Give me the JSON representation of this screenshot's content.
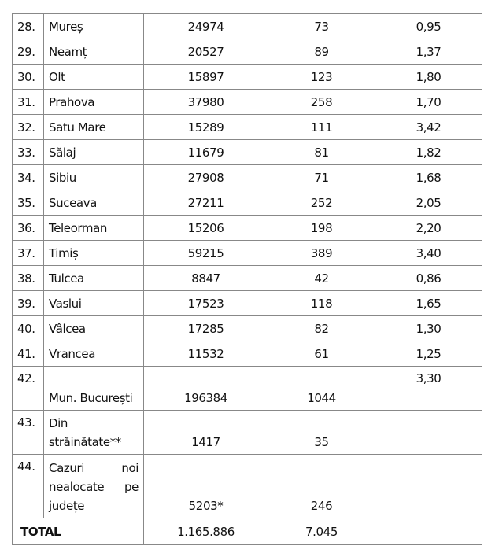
{
  "rows": [
    {
      "no": "28.",
      "name": "Mureș",
      "a": "24974",
      "b": "73",
      "c": "0,95"
    },
    {
      "no": "29.",
      "name": "Neamț",
      "a": "20527",
      "b": "89",
      "c": "1,37"
    },
    {
      "no": "30.",
      "name": "Olt",
      "a": "15897",
      "b": "123",
      "c": "1,80"
    },
    {
      "no": "31.",
      "name": "Prahova",
      "a": "37980",
      "b": "258",
      "c": "1,70"
    },
    {
      "no": "32.",
      "name": "Satu Mare",
      "a": "15289",
      "b": "111",
      "c": "3,42"
    },
    {
      "no": "33.",
      "name": "Sălaj",
      "a": "11679",
      "b": "81",
      "c": "1,82"
    },
    {
      "no": "34.",
      "name": "Sibiu",
      "a": "27908",
      "b": "71",
      "c": "1,68"
    },
    {
      "no": "35.",
      "name": "Suceava",
      "a": "27211",
      "b": "252",
      "c": "2,05"
    },
    {
      "no": "36.",
      "name": "Teleorman",
      "a": "15206",
      "b": "198",
      "c": "2,20"
    },
    {
      "no": "37.",
      "name": "Timiș",
      "a": "59215",
      "b": "389",
      "c": "3,40"
    },
    {
      "no": "38.",
      "name": "Tulcea",
      "a": "8847",
      "b": "42",
      "c": "0,86"
    },
    {
      "no": "39.",
      "name": "Vaslui",
      "a": "17523",
      "b": "118",
      "c": "1,65"
    },
    {
      "no": "40.",
      "name": "Vâlcea",
      "a": "17285",
      "b": "82",
      "c": "1,30"
    },
    {
      "no": "41.",
      "name": "Vrancea",
      "a": "11532",
      "b": "61",
      "c": "1,25"
    }
  ],
  "tall_rows": [
    {
      "no": "42.",
      "name": "Mun. București",
      "a": "196384",
      "b": "1044",
      "c": "3,30"
    },
    {
      "no": "43.",
      "name": "Din străinătate**",
      "a": "1417",
      "b": "35",
      "c": ""
    },
    {
      "no": "44.",
      "name": "Cazuri noi nealocate pe județe",
      "a": "5203*",
      "b": "246",
      "c": ""
    }
  ],
  "total": {
    "label": "TOTAL",
    "a": "1.165.886",
    "b": "7.045",
    "c": ""
  }
}
